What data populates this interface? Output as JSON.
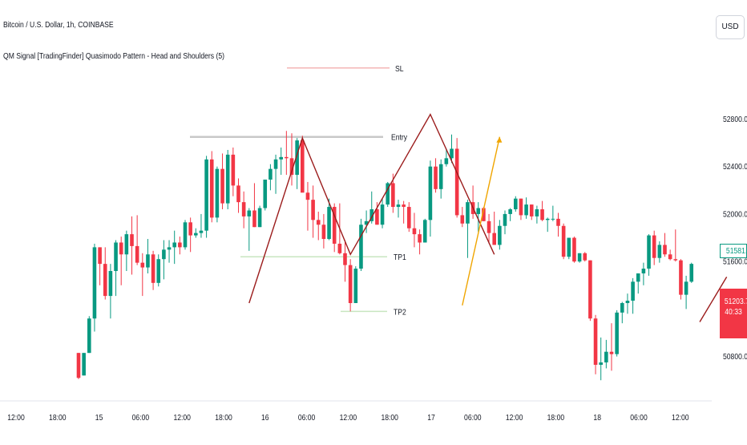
{
  "legend": {
    "title": "Bitcoin / U.S. Dollar, 1h, COINBASE",
    "indicator": "QM Signal [TradingFinder] Quasimodo Pattern - Head and Shoulders (5)"
  },
  "currency_button": "USD",
  "colors": {
    "up": "#089981",
    "down": "#f23645",
    "pattern": "#9b1c1c",
    "signal": "#f0a500",
    "sl_line": "#f4b6b6",
    "entry_line": "#c8c8c8",
    "tp_line": "#c8e6c0"
  },
  "price_tags": {
    "last_price": "51581.86",
    "marked_price": "51203.73",
    "marked_countdown": "40:33"
  },
  "levels": [
    {
      "label": "SL",
      "price": 53230
    },
    {
      "label": "Entry",
      "price": 52650
    },
    {
      "label": "TP1",
      "price": 51640
    },
    {
      "label": "TP2",
      "price": 51180
    }
  ],
  "chart_data": {
    "type": "candlestick",
    "title": "Bitcoin / U.S. Dollar, 1h, COINBASE",
    "y_ticks": [
      "52800.00",
      "52400.00",
      "52000.00",
      "51600.00",
      "51200.00",
      "50800.00"
    ],
    "ylim": [
      50480,
      53330
    ],
    "x_ticks": [
      "12:00",
      "18:00",
      "15",
      "06:00",
      "12:00",
      "18:00",
      "16",
      "06:00",
      "12:00",
      "18:00",
      "17",
      "06:00",
      "12:00",
      "18:00",
      "18",
      "06:00",
      "12:00"
    ],
    "candles": [
      [
        50830,
        50830,
        50610,
        50620
      ],
      [
        50640,
        50830,
        50640,
        50830
      ],
      [
        50830,
        51140,
        50830,
        51120
      ],
      [
        51120,
        51750,
        51010,
        51720
      ],
      [
        51720,
        51720,
        51400,
        51580
      ],
      [
        51580,
        51720,
        51280,
        51310
      ],
      [
        51310,
        51580,
        51120,
        51520
      ],
      [
        51520,
        51780,
        51310,
        51760
      ],
      [
        51760,
        51810,
        51400,
        51660
      ],
      [
        51660,
        51860,
        51520,
        51830
      ],
      [
        51830,
        51980,
        51490,
        51730
      ],
      [
        51730,
        51990,
        51570,
        51590
      ],
      [
        51590,
        51670,
        51310,
        51550
      ],
      [
        51550,
        51790,
        51500,
        51660
      ],
      [
        51660,
        51690,
        51360,
        51420
      ],
      [
        51420,
        51660,
        51390,
        51620
      ],
      [
        51620,
        51780,
        51450,
        51700
      ],
      [
        51700,
        51780,
        51590,
        51720
      ],
      [
        51720,
        51860,
        51580,
        51760
      ],
      [
        51760,
        51810,
        51660,
        51720
      ],
      [
        51720,
        51950,
        51700,
        51930
      ],
      [
        51930,
        51970,
        51680,
        51820
      ],
      [
        51820,
        51880,
        51800,
        51840
      ],
      [
        51840,
        52000,
        51800,
        51860
      ],
      [
        51860,
        52490,
        51800,
        52460
      ],
      [
        52460,
        52530,
        51930,
        51970
      ],
      [
        51970,
        52400,
        51930,
        52380
      ],
      [
        52380,
        52510,
        52040,
        52090
      ],
      [
        52090,
        52540,
        52040,
        52500
      ],
      [
        52500,
        52560,
        52150,
        52240
      ],
      [
        52240,
        52300,
        52010,
        52100
      ],
      [
        52100,
        52190,
        51880,
        51980
      ],
      [
        51980,
        52050,
        51690,
        52030
      ],
      [
        52030,
        52260,
        51890,
        51890
      ],
      [
        51890,
        52070,
        51890,
        52050
      ],
      [
        52050,
        52290,
        52030,
        52290
      ],
      [
        52290,
        52420,
        52200,
        52380
      ],
      [
        52380,
        52500,
        52170,
        52460
      ],
      [
        52460,
        52560,
        52330,
        52480
      ],
      [
        52480,
        52700,
        52330,
        52470
      ],
      [
        52470,
        52680,
        52240,
        52330
      ],
      [
        52330,
        52640,
        52210,
        52620
      ],
      [
        52620,
        52660,
        52190,
        52180
      ],
      [
        52180,
        52270,
        51860,
        52120
      ],
      [
        52120,
        52240,
        51800,
        51950
      ],
      [
        51950,
        52020,
        51780,
        51910
      ],
      [
        51910,
        52000,
        51710,
        51790
      ],
      [
        51790,
        52130,
        51780,
        52060
      ],
      [
        52060,
        52090,
        51680,
        51750
      ],
      [
        51750,
        52090,
        51660,
        51670
      ],
      [
        51670,
        51780,
        51430,
        51570
      ],
      [
        51570,
        51620,
        51180,
        51250
      ],
      [
        51250,
        51560,
        51250,
        51540
      ],
      [
        51540,
        51960,
        51520,
        51910
      ],
      [
        51910,
        52030,
        51840,
        51940
      ],
      [
        51940,
        52190,
        51920,
        52040
      ],
      [
        52040,
        52100,
        51910,
        51910
      ],
      [
        51910,
        52130,
        51880,
        52080
      ],
      [
        52080,
        52270,
        52060,
        52260
      ],
      [
        52260,
        52340,
        52010,
        52060
      ],
      [
        52060,
        52120,
        51970,
        52080
      ],
      [
        52080,
        52110,
        51920,
        52060
      ],
      [
        52060,
        52100,
        51850,
        51880
      ],
      [
        51880,
        52010,
        51720,
        51830
      ],
      [
        51830,
        51870,
        51660,
        51760
      ],
      [
        51760,
        51960,
        51760,
        51950
      ],
      [
        51950,
        52450,
        51810,
        52400
      ],
      [
        52400,
        52470,
        52180,
        52210
      ],
      [
        52210,
        52460,
        52130,
        52420
      ],
      [
        52420,
        52550,
        52400,
        52470
      ],
      [
        52470,
        52670,
        52430,
        52550
      ],
      [
        52550,
        52640,
        51970,
        51990
      ],
      [
        51990,
        52060,
        51890,
        51920
      ],
      [
        51920,
        52120,
        51630,
        52100
      ],
      [
        52100,
        52240,
        51960,
        52000
      ],
      [
        52000,
        52100,
        51850,
        52050
      ],
      [
        52050,
        52060,
        51940,
        51940
      ],
      [
        51940,
        52000,
        51750,
        51840
      ],
      [
        51840,
        52020,
        51740,
        51740
      ],
      [
        51740,
        51950,
        51700,
        51900
      ],
      [
        51900,
        52030,
        51830,
        52000
      ],
      [
        52000,
        52050,
        51940,
        52040
      ],
      [
        52040,
        52150,
        52020,
        52130
      ],
      [
        52130,
        52130,
        51950,
        51990
      ],
      [
        51990,
        52140,
        51960,
        52080
      ],
      [
        52080,
        52080,
        51950,
        51980
      ],
      [
        51980,
        52070,
        51920,
        52040
      ],
      [
        52040,
        52110,
        51940,
        51950
      ],
      [
        51950,
        51970,
        51850,
        51960
      ],
      [
        51960,
        52070,
        51940,
        51960
      ],
      [
        51960,
        52010,
        51810,
        51900
      ],
      [
        51900,
        51920,
        51620,
        51640
      ],
      [
        51640,
        51800,
        51620,
        51800
      ],
      [
        51800,
        51810,
        51590,
        51600
      ],
      [
        51600,
        51670,
        51590,
        51670
      ],
      [
        51670,
        51680,
        51600,
        51610
      ],
      [
        51610,
        51610,
        51100,
        51120
      ],
      [
        51120,
        51150,
        50650,
        50730
      ],
      [
        50730,
        50960,
        50600,
        50750
      ],
      [
        50750,
        50940,
        50700,
        50840
      ],
      [
        50840,
        51080,
        50680,
        50820
      ],
      [
        50820,
        51190,
        50800,
        51170
      ],
      [
        51170,
        51260,
        51080,
        51250
      ],
      [
        51250,
        51330,
        51160,
        51270
      ],
      [
        51270,
        51460,
        51160,
        51430
      ],
      [
        51430,
        51500,
        51330,
        51500
      ],
      [
        51500,
        51590,
        51400,
        51540
      ],
      [
        51540,
        51830,
        51480,
        51820
      ],
      [
        51820,
        51860,
        51570,
        51630
      ],
      [
        51630,
        51770,
        51590,
        51740
      ],
      [
        51740,
        51840,
        51640,
        51660
      ],
      [
        51660,
        51700,
        51610,
        51620
      ],
      [
        51620,
        51870,
        51600,
        51610
      ],
      [
        51610,
        51620,
        51280,
        51320
      ],
      [
        51320,
        51480,
        51200,
        51430
      ],
      [
        51430,
        51590,
        51420,
        51580
      ]
    ],
    "pattern_path": [
      [
        32,
        51250
      ],
      [
        42,
        52640
      ],
      [
        51,
        51660
      ],
      [
        66,
        52840
      ],
      [
        78,
        51660
      ]
    ],
    "signal_path": [
      [
        72,
        51230
      ],
      [
        79,
        52650
      ]
    ]
  }
}
